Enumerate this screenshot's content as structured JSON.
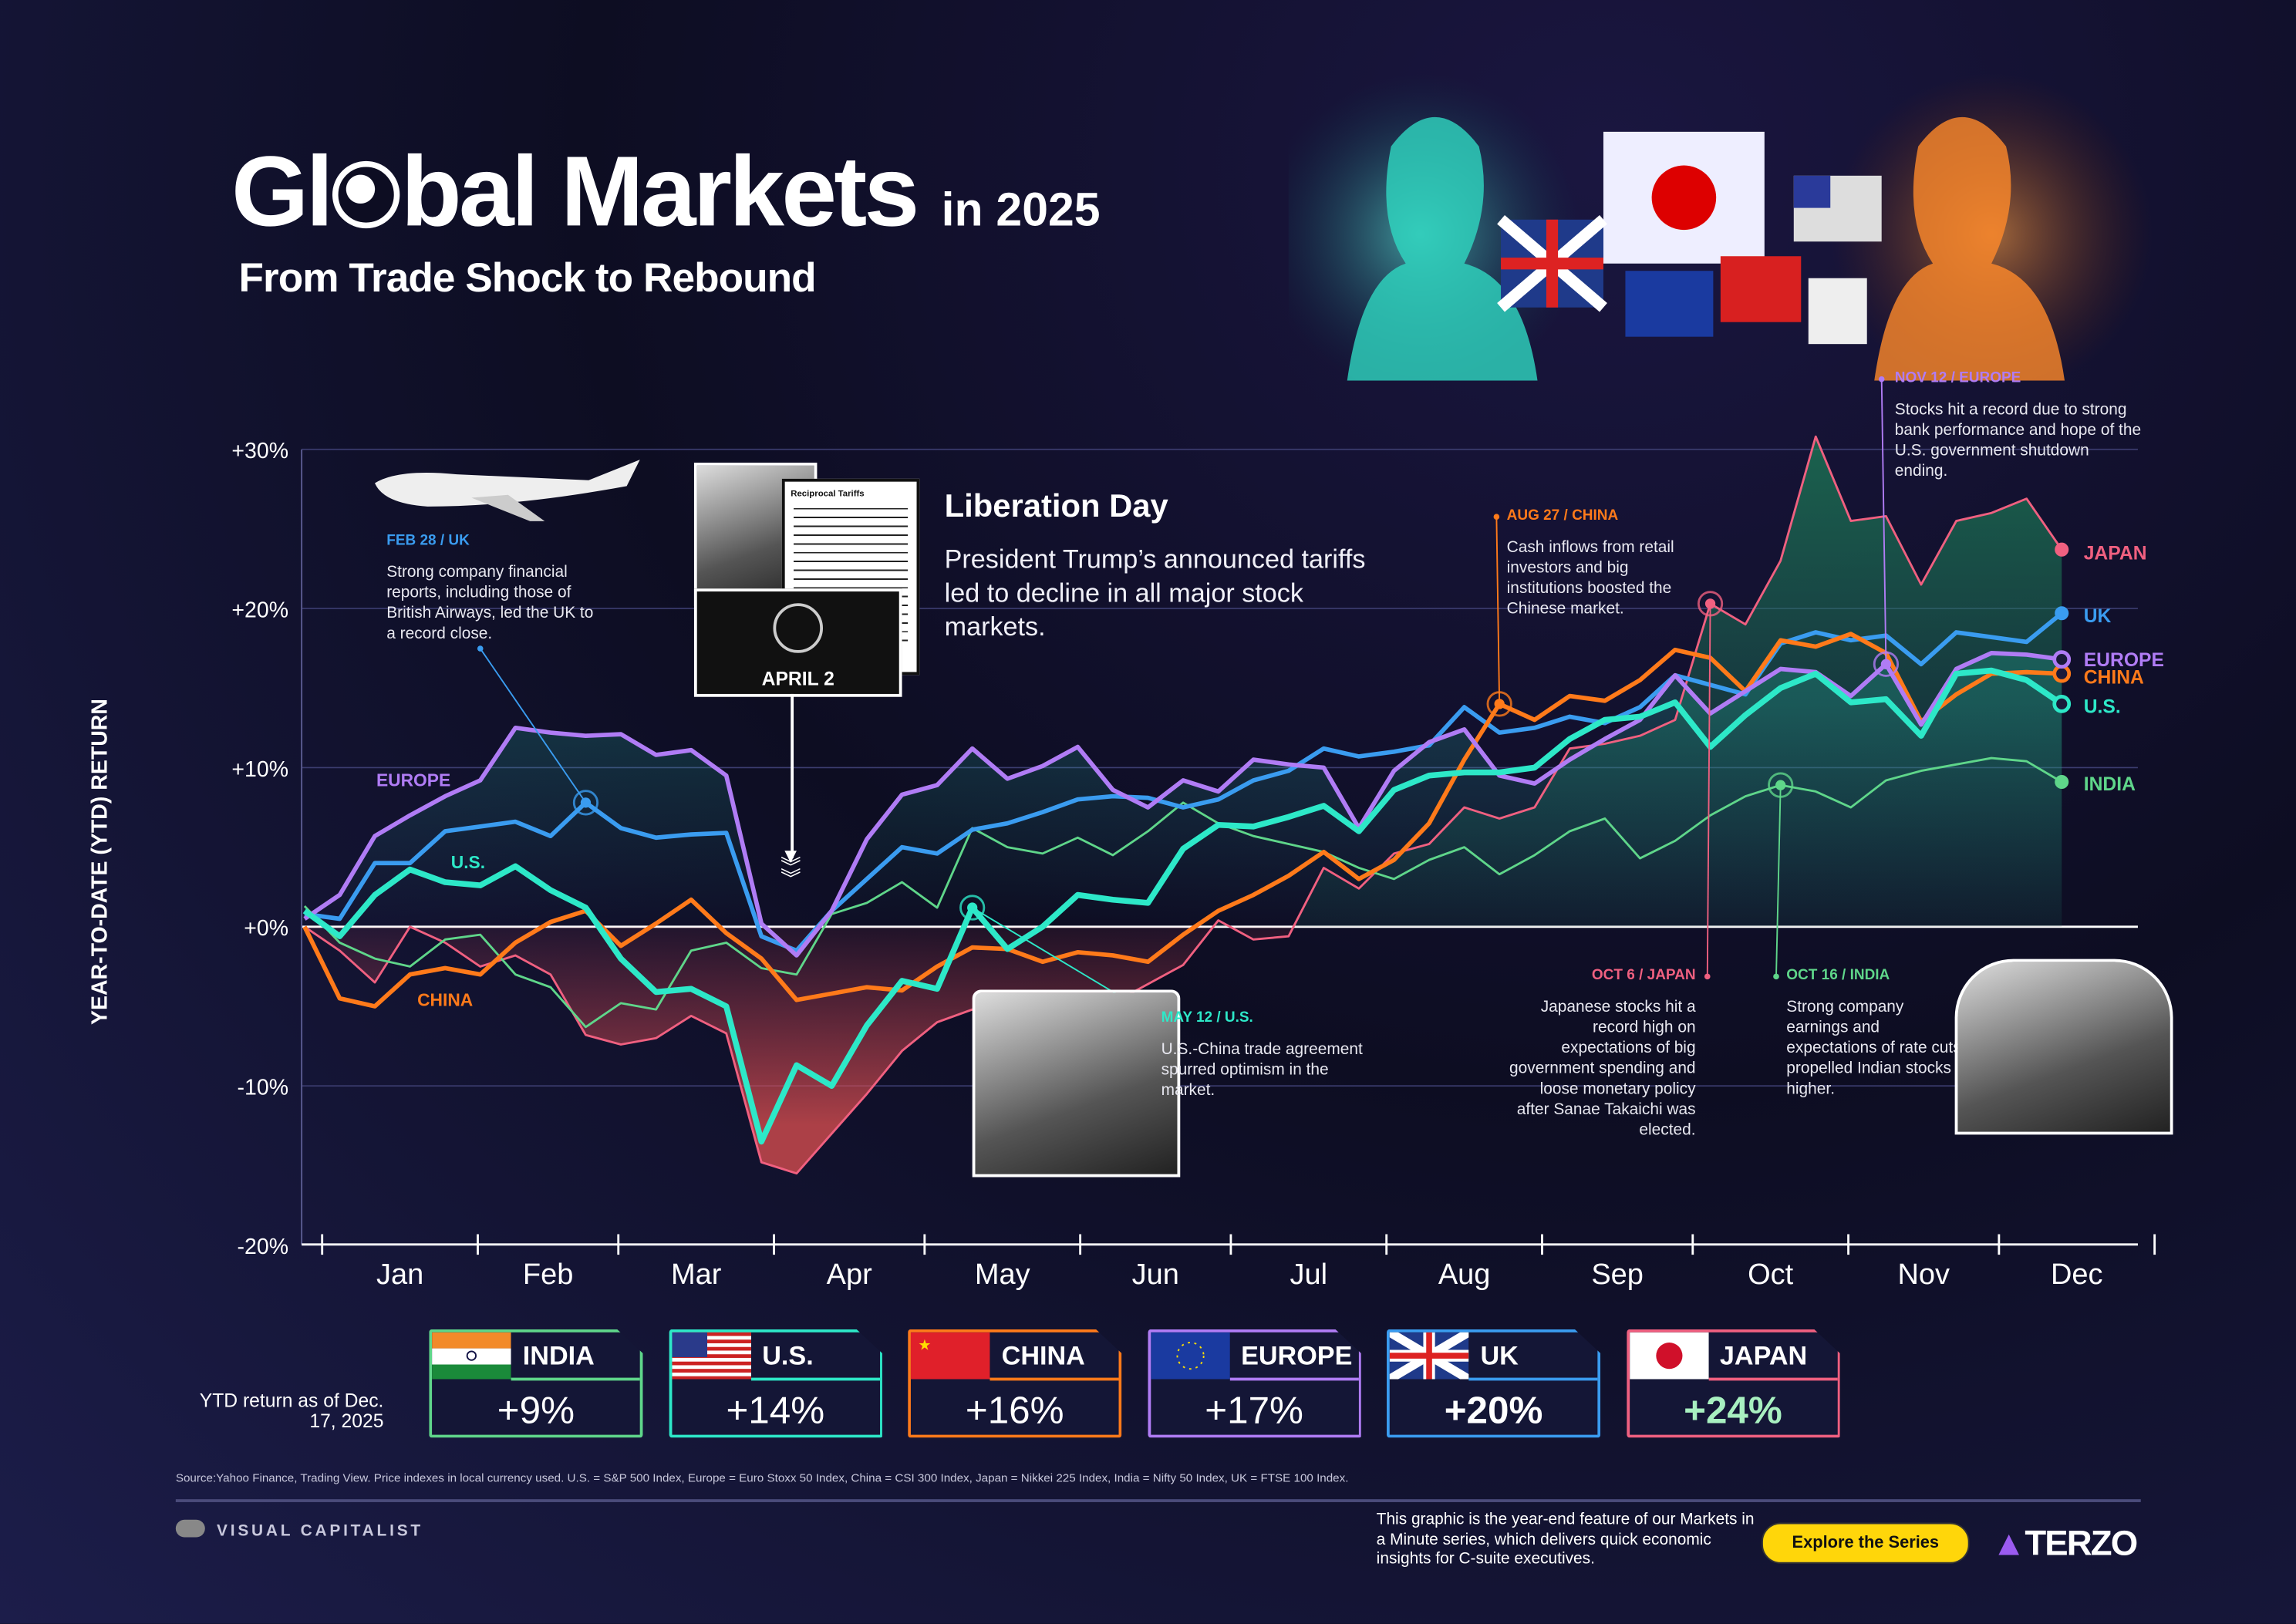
{
  "header": {
    "title_pre": "Gl",
    "title_post": "bal Markets",
    "title_suffix": "in 2025",
    "subtitle": "From Trade Shock to Rebound"
  },
  "chart_data": {
    "type": "line",
    "ylabel": "YEAR-TO-DATE (YTD) RETURN",
    "ylim": [
      -20,
      30
    ],
    "yticks": [
      "+30%",
      "+20%",
      "+10%",
      "+0%",
      "-10%",
      "-20%"
    ],
    "yticks_values": [
      30,
      20,
      10,
      0,
      -10,
      -20
    ],
    "xticks": [
      "Jan",
      "Feb",
      "Mar",
      "Apr",
      "May",
      "Jun",
      "Jul",
      "Aug",
      "Sep",
      "Oct",
      "Nov",
      "Dec"
    ],
    "grid": true,
    "dates": [
      "2025-01-01",
      "2025-01-08",
      "2025-01-15",
      "2025-01-22",
      "2025-01-29",
      "2025-02-05",
      "2025-02-12",
      "2025-02-19",
      "2025-02-26",
      "2025-03-05",
      "2025-03-12",
      "2025-03-19",
      "2025-03-26",
      "2025-04-02",
      "2025-04-09",
      "2025-04-16",
      "2025-04-23",
      "2025-04-30",
      "2025-05-07",
      "2025-05-14",
      "2025-05-21",
      "2025-05-28",
      "2025-06-04",
      "2025-06-11",
      "2025-06-18",
      "2025-06-25",
      "2025-07-02",
      "2025-07-09",
      "2025-07-16",
      "2025-07-23",
      "2025-07-30",
      "2025-08-06",
      "2025-08-13",
      "2025-08-20",
      "2025-08-27",
      "2025-09-03",
      "2025-09-10",
      "2025-09-17",
      "2025-09-24",
      "2025-10-01",
      "2025-10-08",
      "2025-10-15",
      "2025-10-22",
      "2025-10-29",
      "2025-11-05",
      "2025-11-12",
      "2025-11-19",
      "2025-11-26",
      "2025-12-03",
      "2025-12-10",
      "2025-12-17"
    ],
    "series": [
      {
        "name": "JAPAN",
        "color": "#f06080",
        "values": [
          0,
          -1.5,
          -3.5,
          0,
          -1,
          -2.5,
          -1.8,
          -3,
          -6.8,
          -7.4,
          -7,
          -5.6,
          -6.7,
          -14.8,
          -15.5,
          -13,
          -10.5,
          -7.8,
          -6,
          -5.2,
          -6.8,
          -4.5,
          -5.8,
          -4.8,
          -3.6,
          -2.4,
          0.4,
          -0.8,
          -0.6,
          3.7,
          2.4,
          4.6,
          5.2,
          7.5,
          6.8,
          7.5,
          11.2,
          11.5,
          12,
          13,
          20.3,
          19,
          23,
          30.8,
          25.5,
          25.8,
          21.5,
          25.5,
          26,
          26.9,
          23.7
        ]
      },
      {
        "name": "INDIA",
        "color": "#5fd68a",
        "values": [
          1.3,
          -1,
          -2,
          -2.5,
          -0.8,
          -0.5,
          -3,
          -3.8,
          -6.3,
          -4.8,
          -5.2,
          -1.5,
          -1,
          -2.6,
          -3,
          0.8,
          1.5,
          2.8,
          1.2,
          6.2,
          5,
          4.6,
          5.6,
          4.5,
          6,
          7.8,
          6.5,
          5.7,
          5.2,
          4.7,
          3.7,
          3,
          4.2,
          5,
          3.3,
          4.5,
          6,
          6.8,
          4.3,
          5.4,
          7,
          8.2,
          8.9,
          8.5,
          7.5,
          9.2,
          9.8,
          10.2,
          10.6,
          10.4,
          9.1
        ]
      },
      {
        "name": "UK",
        "color": "#3a9cf0",
        "values": [
          0.8,
          0.5,
          4,
          4,
          6,
          6.3,
          6.6,
          5.7,
          7.8,
          6.2,
          5.6,
          5.8,
          5.9,
          -0.6,
          -1.5,
          1,
          3,
          5,
          4.6,
          6.1,
          6.5,
          7.2,
          8,
          8.2,
          8.1,
          7.5,
          8,
          9.2,
          9.8,
          11.2,
          10.7,
          11,
          11.4,
          13.8,
          12.2,
          12.5,
          13.2,
          12.8,
          13.8,
          15.8,
          15.2,
          14.6,
          17.8,
          18.5,
          18,
          18.3,
          16.5,
          18.5,
          18.2,
          17.9,
          19.7
        ]
      },
      {
        "name": "CHINA",
        "color": "#ff7a1a",
        "values": [
          0,
          -4.5,
          -5,
          -3,
          -2.6,
          -3,
          -1,
          0.3,
          1,
          -1.2,
          0.2,
          1.7,
          -0.4,
          -2,
          -4.6,
          -4.2,
          -3.8,
          -4,
          -2.5,
          -1.3,
          -1.4,
          -2.2,
          -1.6,
          -1.8,
          -2.2,
          -0.5,
          1,
          2,
          3.2,
          4.7,
          3,
          4.2,
          6.5,
          10.5,
          14,
          13,
          14.5,
          14.2,
          15.5,
          17.4,
          16.9,
          14.8,
          18,
          17.6,
          18.4,
          17.2,
          12.9,
          14.6,
          15.9,
          16,
          15.9
        ]
      },
      {
        "name": "EUROPE",
        "color": "#b07cf5",
        "values": [
          0.5,
          2,
          5.7,
          7,
          8.2,
          9.2,
          12.5,
          12.2,
          12,
          12.1,
          10.8,
          11.1,
          9.5,
          0.2,
          -1.8,
          1,
          5.5,
          8.3,
          8.9,
          11.2,
          9.3,
          10.1,
          11.3,
          8.6,
          7.5,
          9.2,
          8.5,
          10.5,
          10.2,
          10,
          6.2,
          9.8,
          11.6,
          12.4,
          9.5,
          9,
          10.5,
          11.8,
          13,
          15.8,
          13.4,
          14.8,
          16.2,
          16,
          14.5,
          16.5,
          12.7,
          16.2,
          17.2,
          17.1,
          16.8
        ]
      },
      {
        "name": "U.S.",
        "color": "#2de8c8",
        "values": [
          1,
          -0.6,
          2,
          3.6,
          2.8,
          2.6,
          3.8,
          2.3,
          1.2,
          -2,
          -4.1,
          -3.9,
          -5,
          -13.5,
          -8.7,
          -10,
          -6.2,
          -3.4,
          -3.9,
          1.2,
          -1.4,
          0,
          2,
          1.7,
          1.5,
          4.9,
          6.4,
          6.3,
          6.9,
          7.6,
          6,
          8.6,
          9.5,
          9.7,
          9.7,
          10,
          11.8,
          13,
          13.2,
          14.1,
          11.3,
          13.3,
          15,
          15.9,
          14.1,
          14.3,
          12,
          15.9,
          16.1,
          15.5,
          14
        ]
      }
    ],
    "inline_labels": {
      "europe": "EUROPE",
      "us": "U.S.",
      "china": "CHINA"
    }
  },
  "annotations": {
    "feb28": {
      "date": "FEB 28 / UK",
      "text": "Strong company financial reports, including those of British Airways, led the UK to a record close."
    },
    "liberation": {
      "title": "Liberation Day",
      "text": "President Trump’s announced tariffs led to decline in all major stock markets.",
      "badge": "APRIL 2",
      "sign": "Reciprocal Tariffs"
    },
    "may12": {
      "date": "MAY 12 / U.S.",
      "text": "U.S.-China trade agreement spurred optimism in the market."
    },
    "aug27": {
      "date": "AUG 27 / CHINA",
      "text": "Cash inflows from retail investors and big institutions boosted the Chinese market."
    },
    "oct6": {
      "date": "OCT 6 / JAPAN",
      "text": "Japanese stocks hit a record high on expectations of big government spending and loose monetary policy after Sanae Takaichi was elected."
    },
    "oct16": {
      "date": "OCT 16 / INDIA",
      "text": "Strong company earnings and expectations of rate cuts propelled Indian stocks higher."
    },
    "nov12": {
      "date": "NOV 12 / EUROPE",
      "text": "Stocks hit a record due to strong bank performance and hope of the U.S. government shutdown ending."
    }
  },
  "summary": {
    "asof": "YTD return as of Dec. 17, 2025",
    "cards": [
      {
        "name": "INDIA",
        "value": "+9%",
        "color": "#5fd68a"
      },
      {
        "name": "U.S.",
        "value": "+14%",
        "color": "#2de8c8"
      },
      {
        "name": "CHINA",
        "value": "+16%",
        "color": "#ff7a1a"
      },
      {
        "name": "EUROPE",
        "value": "+17%",
        "color": "#b07cf5"
      },
      {
        "name": "UK",
        "value": "+20%",
        "color": "#3a9cf0"
      },
      {
        "name": "JAPAN",
        "value": "+24%",
        "color": "#f06080"
      }
    ]
  },
  "footer": {
    "source": "Source:Yahoo Finance, Trading View. Price indexes in local currency used. U.S. = S&P 500 Index, Europe = Euro Stoxx 50 Index, China = CSI 300 Index, Japan = Nikkei 225 Index, India = Nifty 50 Index, UK = FTSE 100 Index.",
    "brand": "VISUAL CAPITALIST",
    "blurb": "This graphic is the year-end feature of our Markets in a Minute series, which delivers quick economic insights for C-suite executives.",
    "cta": "Explore the Series",
    "sponsor": "TERZO"
  }
}
